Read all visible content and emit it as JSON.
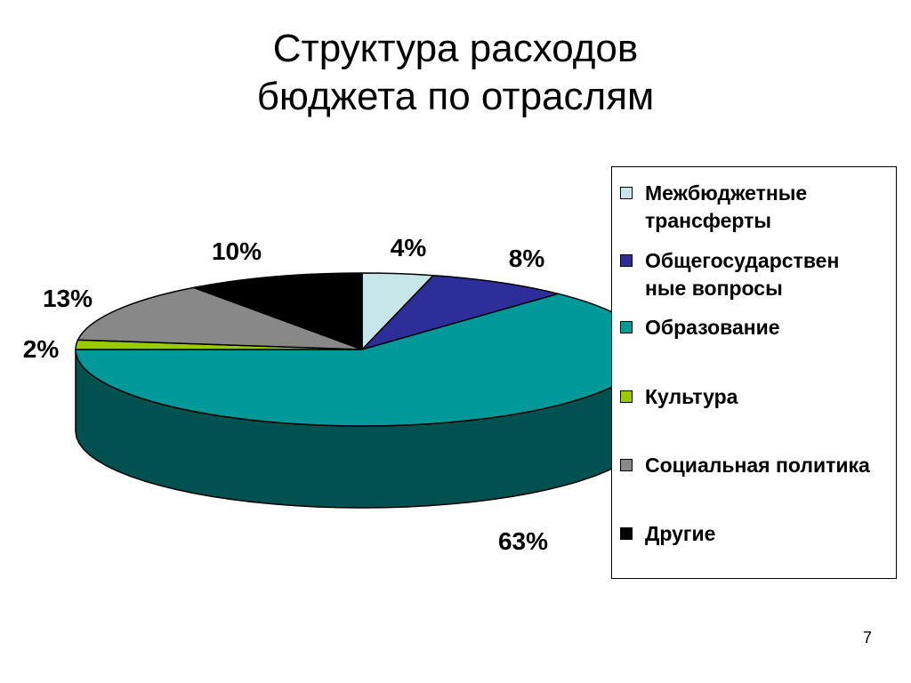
{
  "title": {
    "line1": "Структура расходов",
    "line2": "бюджета по отраслям"
  },
  "chart_data": {
    "type": "pie",
    "style": "3d",
    "start_angle_deg": 0,
    "direction": "clockwise",
    "legend_placement": "right",
    "categories": [
      "Межбюджетные трансферты",
      "Общегосударственные вопросы",
      "Образование",
      "Культура",
      "Социальная политика",
      "Другие"
    ],
    "values": [
      4,
      8,
      63,
      2,
      13,
      10
    ],
    "value_labels": [
      "4%",
      "8%",
      "63%",
      "2%",
      "13%",
      "10%"
    ],
    "colors": [
      "#c6e6e9",
      "#2e2e9a",
      "#00999a",
      "#99cc00",
      "#888888",
      "#000000"
    ],
    "side_colors": [
      "#8fb1b4",
      "#1c1c66",
      "#025151",
      "#6a8c00",
      "#555555",
      "#000000"
    ]
  },
  "legend": {
    "items": [
      {
        "label": "Межбюджетные трансферты",
        "color": "#c6e6e9"
      },
      {
        "label": "Общегосударствен ные вопросы",
        "color": "#2e2e9a"
      },
      {
        "label": "Образование",
        "color": "#00999a"
      },
      {
        "label": "Культура",
        "color": "#99cc00"
      },
      {
        "label": "Социальная политика",
        "color": "#888888"
      },
      {
        "label": "Другие",
        "color": "#000000"
      }
    ]
  },
  "page_number": "7"
}
